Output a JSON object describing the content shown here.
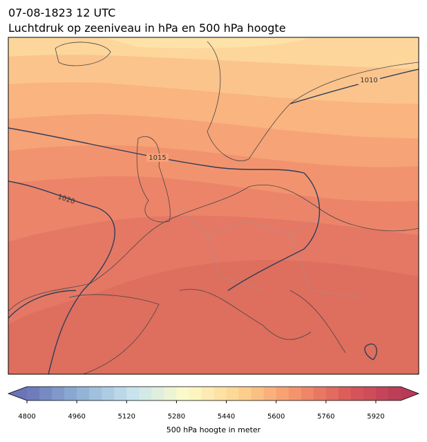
{
  "header": {
    "title": "07-08-1823 12 UTC",
    "subtitle": "Luchtdruk op zeeniveau in hPa en 500 hPa hoogte"
  },
  "map": {
    "contour_labels": [
      "1010",
      "1015",
      "1020"
    ]
  },
  "colorbar": {
    "label": "500 hPa hoogte in meter",
    "range": [
      4800,
      6000
    ],
    "ticks": [
      4800,
      4960,
      5120,
      5280,
      5440,
      5600,
      5760,
      5920
    ],
    "colors": [
      "#6a75b8",
      "#8fb3d6",
      "#c8e4ee",
      "#fdfbc8",
      "#fdd28e",
      "#f5956c",
      "#dc5a5a",
      "#b83a57"
    ]
  }
}
